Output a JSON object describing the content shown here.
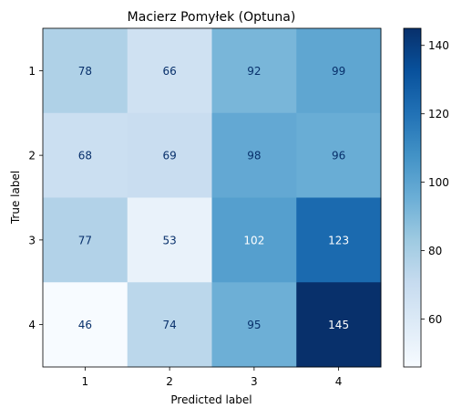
{
  "chart_data": {
    "type": "heatmap",
    "title": "Macierz Pomyłek (Optuna)",
    "xlabel": "Predicted label",
    "ylabel": "True label",
    "x_categories": [
      "1",
      "2",
      "3",
      "4"
    ],
    "y_categories": [
      "1",
      "2",
      "3",
      "4"
    ],
    "values": [
      [
        78,
        66,
        92,
        99
      ],
      [
        68,
        69,
        98,
        96
      ],
      [
        77,
        53,
        102,
        123
      ],
      [
        46,
        74,
        95,
        145
      ]
    ],
    "colormap": "Blues",
    "vmin": 46,
    "vmax": 145,
    "colorbar_ticks": [
      60,
      80,
      100,
      120,
      140
    ],
    "colorbar_tick_labels": [
      "60",
      "80",
      "100",
      "120",
      "140"
    ]
  }
}
